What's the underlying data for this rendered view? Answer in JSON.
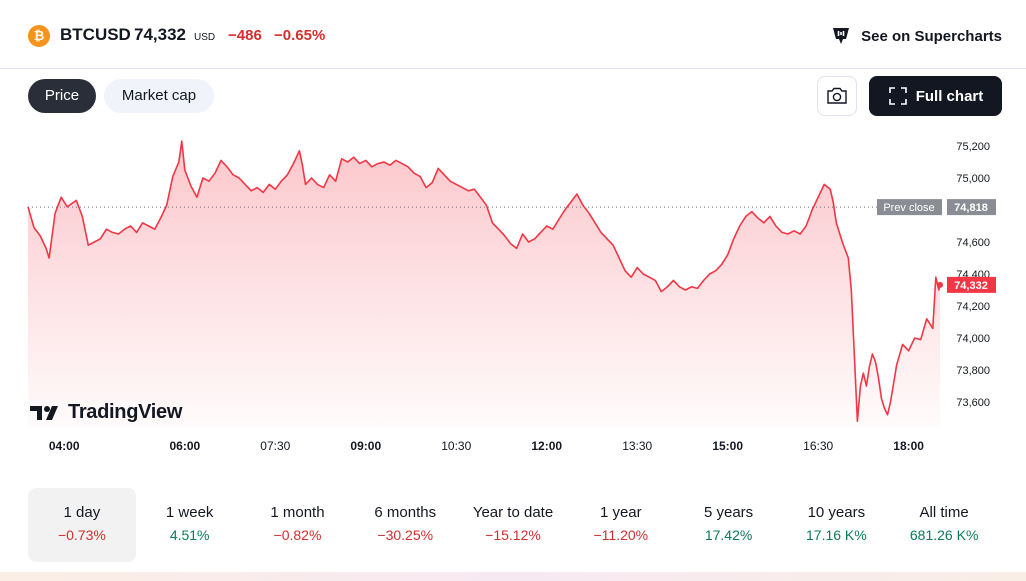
{
  "header": {
    "coin_icon_label": "₿",
    "symbol": "BTCUSD",
    "price": "74,332",
    "currency": "USD",
    "change": "−486",
    "change_pct": "−0.65%",
    "supercharts_label": "See on Supercharts"
  },
  "tabs": {
    "price_label": "Price",
    "market_cap_label": "Market cap"
  },
  "toolbar": {
    "full_chart_label": "Full chart"
  },
  "logo": {
    "text": "TradingView"
  },
  "colors": {
    "line": "#f23645",
    "negative": "#d32f2f",
    "positive": "#0b7a5e",
    "prev_close_bg": "#8a8d93",
    "price_tag_bg": "#f23645"
  },
  "periods": [
    {
      "label": "1 day",
      "value": "−0.73%",
      "sign": "neg",
      "active": true
    },
    {
      "label": "1 week",
      "value": "4.51%",
      "sign": "pos"
    },
    {
      "label": "1 month",
      "value": "−0.82%",
      "sign": "neg"
    },
    {
      "label": "6 months",
      "value": "−30.25%",
      "sign": "neg"
    },
    {
      "label": "Year to date",
      "value": "−15.12%",
      "sign": "neg"
    },
    {
      "label": "1 year",
      "value": "−11.20%",
      "sign": "neg"
    },
    {
      "label": "5 years",
      "value": "17.42%",
      "sign": "pos"
    },
    {
      "label": "10 years",
      "value": "17.16 K%",
      "sign": "pos"
    },
    {
      "label": "All time",
      "value": "681.26 K%",
      "sign": "pos"
    }
  ],
  "chart_data": {
    "type": "area",
    "x_ticks": [
      {
        "label": "04:00",
        "t": 0.6,
        "bold": true
      },
      {
        "label": "06:00",
        "t": 2.6,
        "bold": true
      },
      {
        "label": "07:30",
        "t": 4.1,
        "bold": false
      },
      {
        "label": "09:00",
        "t": 5.6,
        "bold": true
      },
      {
        "label": "10:30",
        "t": 7.1,
        "bold": false
      },
      {
        "label": "12:00",
        "t": 8.6,
        "bold": true
      },
      {
        "label": "13:30",
        "t": 10.1,
        "bold": false
      },
      {
        "label": "15:00",
        "t": 11.6,
        "bold": true
      },
      {
        "label": "16:30",
        "t": 13.1,
        "bold": false
      },
      {
        "label": "18:00",
        "t": 14.6,
        "bold": true
      }
    ],
    "y_ticks": [
      73600,
      73800,
      74000,
      74200,
      74400,
      74600,
      75000,
      75200
    ],
    "ylim": [
      73450,
      75300
    ],
    "xlim": [
      0,
      15.12
    ],
    "prev_close": {
      "label": "Prev close",
      "value": 74818,
      "value_label": "74,818"
    },
    "last_price": {
      "value": 74332,
      "value_label": "74,332"
    },
    "series": [
      {
        "points": [
          [
            0.0,
            74820
          ],
          [
            0.1,
            74690
          ],
          [
            0.2,
            74640
          ],
          [
            0.3,
            74560
          ],
          [
            0.35,
            74500
          ],
          [
            0.45,
            74780
          ],
          [
            0.55,
            74880
          ],
          [
            0.65,
            74820
          ],
          [
            0.8,
            74860
          ],
          [
            0.9,
            74760
          ],
          [
            1.0,
            74580
          ],
          [
            1.1,
            74600
          ],
          [
            1.2,
            74620
          ],
          [
            1.3,
            74680
          ],
          [
            1.4,
            74660
          ],
          [
            1.5,
            74650
          ],
          [
            1.6,
            74680
          ],
          [
            1.7,
            74700
          ],
          [
            1.8,
            74660
          ],
          [
            1.9,
            74720
          ],
          [
            2.0,
            74700
          ],
          [
            2.1,
            74680
          ],
          [
            2.2,
            74750
          ],
          [
            2.3,
            74830
          ],
          [
            2.4,
            75010
          ],
          [
            2.5,
            75100
          ],
          [
            2.55,
            75230
          ],
          [
            2.6,
            75050
          ],
          [
            2.7,
            74950
          ],
          [
            2.8,
            74880
          ],
          [
            2.9,
            75000
          ],
          [
            3.0,
            74980
          ],
          [
            3.1,
            75030
          ],
          [
            3.2,
            75110
          ],
          [
            3.3,
            75070
          ],
          [
            3.4,
            75020
          ],
          [
            3.5,
            75000
          ],
          [
            3.6,
            74960
          ],
          [
            3.7,
            74920
          ],
          [
            3.8,
            74940
          ],
          [
            3.9,
            74910
          ],
          [
            4.0,
            74960
          ],
          [
            4.1,
            74930
          ],
          [
            4.2,
            74980
          ],
          [
            4.3,
            75020
          ],
          [
            4.4,
            75090
          ],
          [
            4.5,
            75170
          ],
          [
            4.55,
            75080
          ],
          [
            4.6,
            74960
          ],
          [
            4.7,
            75000
          ],
          [
            4.8,
            74960
          ],
          [
            4.9,
            74940
          ],
          [
            5.0,
            75020
          ],
          [
            5.1,
            74980
          ],
          [
            5.2,
            75120
          ],
          [
            5.3,
            75100
          ],
          [
            5.4,
            75130
          ],
          [
            5.5,
            75090
          ],
          [
            5.6,
            75110
          ],
          [
            5.7,
            75070
          ],
          [
            5.8,
            75090
          ],
          [
            5.9,
            75100
          ],
          [
            6.0,
            75080
          ],
          [
            6.1,
            75110
          ],
          [
            6.2,
            75090
          ],
          [
            6.3,
            75070
          ],
          [
            6.4,
            75030
          ],
          [
            6.5,
            75010
          ],
          [
            6.6,
            74940
          ],
          [
            6.7,
            74970
          ],
          [
            6.8,
            75060
          ],
          [
            6.9,
            75020
          ],
          [
            7.0,
            74980
          ],
          [
            7.1,
            74960
          ],
          [
            7.2,
            74940
          ],
          [
            7.3,
            74920
          ],
          [
            7.4,
            74930
          ],
          [
            7.5,
            74880
          ],
          [
            7.6,
            74830
          ],
          [
            7.7,
            74720
          ],
          [
            7.8,
            74680
          ],
          [
            7.9,
            74640
          ],
          [
            8.0,
            74590
          ],
          [
            8.1,
            74560
          ],
          [
            8.2,
            74650
          ],
          [
            8.3,
            74600
          ],
          [
            8.4,
            74620
          ],
          [
            8.5,
            74660
          ],
          [
            8.6,
            74700
          ],
          [
            8.7,
            74680
          ],
          [
            8.8,
            74740
          ],
          [
            8.9,
            74800
          ],
          [
            9.0,
            74850
          ],
          [
            9.1,
            74900
          ],
          [
            9.2,
            74830
          ],
          [
            9.3,
            74780
          ],
          [
            9.4,
            74720
          ],
          [
            9.5,
            74660
          ],
          [
            9.6,
            74620
          ],
          [
            9.7,
            74580
          ],
          [
            9.8,
            74500
          ],
          [
            9.9,
            74420
          ],
          [
            10.0,
            74380
          ],
          [
            10.1,
            74440
          ],
          [
            10.2,
            74400
          ],
          [
            10.3,
            74380
          ],
          [
            10.4,
            74360
          ],
          [
            10.5,
            74290
          ],
          [
            10.6,
            74320
          ],
          [
            10.7,
            74360
          ],
          [
            10.8,
            74320
          ],
          [
            10.9,
            74300
          ],
          [
            11.0,
            74320
          ],
          [
            11.1,
            74310
          ],
          [
            11.2,
            74360
          ],
          [
            11.3,
            74400
          ],
          [
            11.4,
            74420
          ],
          [
            11.5,
            74460
          ],
          [
            11.6,
            74520
          ],
          [
            11.7,
            74620
          ],
          [
            11.8,
            74700
          ],
          [
            11.9,
            74760
          ],
          [
            12.0,
            74790
          ],
          [
            12.1,
            74750
          ],
          [
            12.2,
            74720
          ],
          [
            12.3,
            74760
          ],
          [
            12.4,
            74700
          ],
          [
            12.5,
            74660
          ],
          [
            12.6,
            74650
          ],
          [
            12.7,
            74670
          ],
          [
            12.8,
            74650
          ],
          [
            12.9,
            74700
          ],
          [
            13.0,
            74800
          ],
          [
            13.1,
            74880
          ],
          [
            13.2,
            74960
          ],
          [
            13.3,
            74930
          ],
          [
            13.35,
            74850
          ],
          [
            13.4,
            74720
          ],
          [
            13.5,
            74600
          ],
          [
            13.6,
            74500
          ],
          [
            13.65,
            74300
          ],
          [
            13.7,
            73900
          ],
          [
            13.75,
            73480
          ],
          [
            13.8,
            73700
          ],
          [
            13.85,
            73780
          ],
          [
            13.9,
            73700
          ],
          [
            13.95,
            73820
          ],
          [
            14.0,
            73900
          ],
          [
            14.05,
            73850
          ],
          [
            14.1,
            73750
          ],
          [
            14.15,
            73620
          ],
          [
            14.2,
            73560
          ],
          [
            14.25,
            73520
          ],
          [
            14.3,
            73600
          ],
          [
            14.4,
            73830
          ],
          [
            14.5,
            73960
          ],
          [
            14.6,
            73920
          ],
          [
            14.7,
            74000
          ],
          [
            14.8,
            73990
          ],
          [
            14.9,
            74120
          ],
          [
            15.0,
            74060
          ],
          [
            15.05,
            74380
          ],
          [
            15.1,
            74300
          ],
          [
            15.12,
            74332
          ]
        ]
      }
    ]
  }
}
